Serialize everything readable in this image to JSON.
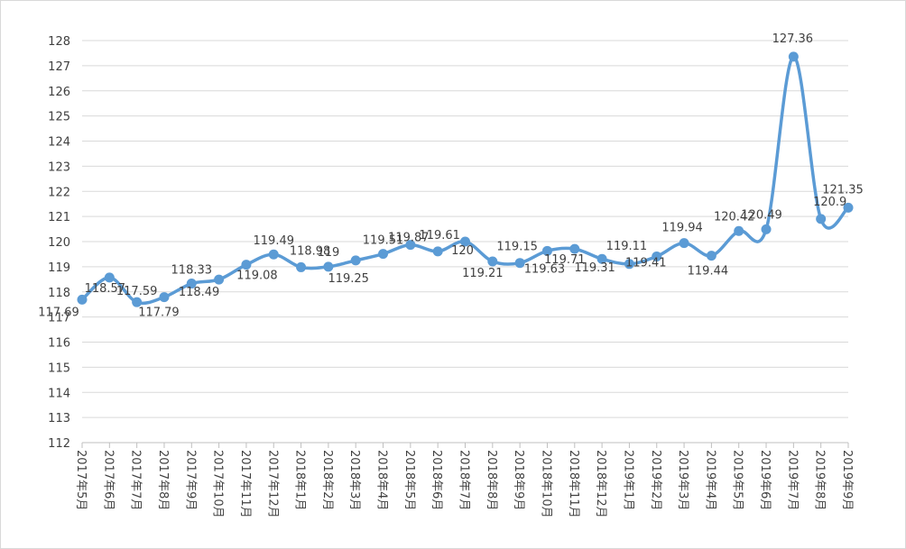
{
  "chart_data": {
    "type": "line",
    "title": "",
    "xlabel": "",
    "ylabel": "",
    "ylim": [
      112,
      128
    ],
    "y_ticks": [
      112,
      113,
      114,
      115,
      116,
      117,
      118,
      119,
      120,
      121,
      122,
      123,
      124,
      125,
      126,
      127,
      128
    ],
    "grid": "horizontal",
    "legend": "none",
    "line_color": "#5B9BD5",
    "smooth": true,
    "categories": [
      "2017年5月",
      "2017年6月",
      "2017年7月",
      "2017年8月",
      "2017年9月",
      "2017年10月",
      "2017年11月",
      "2017年12月",
      "2018年1月",
      "2018年2月",
      "2018年3月",
      "2018年4月",
      "2018年5月",
      "2018年6月",
      "2018年7月",
      "2018年8月",
      "2018年9月",
      "2018年10月",
      "2018年11月",
      "2018年12月",
      "2019年1月",
      "2019年2月",
      "2019年3月",
      "2019年4月",
      "2019年5月",
      "2019年6月",
      "2019年7月",
      "2019年8月",
      "2019年9月"
    ],
    "series": [
      {
        "values": [
          117.69,
          118.57,
          117.59,
          117.79,
          118.33,
          118.49,
          119.08,
          119.49,
          118.98,
          119.0,
          119.25,
          119.51,
          119.87,
          119.61,
          120.0,
          119.21,
          119.15,
          119.63,
          119.71,
          119.31,
          119.11,
          119.41,
          119.94,
          119.44,
          120.42,
          120.49,
          127.36,
          120.9,
          121.35
        ],
        "labels": [
          "117.69",
          "118.57",
          "117.59",
          "117.79",
          "118.33",
          "118.49",
          "119.08",
          "119.49",
          "118.98",
          "119",
          "119.25",
          "119.51",
          "119.87",
          "119.61",
          "120",
          "119.21",
          "119.15",
          "119.63",
          "119.71",
          "119.31",
          "119.11",
          "119.41",
          "119.94",
          "119.44",
          "120.42",
          "120.49",
          "127.36",
          "120.9",
          "121.35"
        ]
      }
    ]
  }
}
